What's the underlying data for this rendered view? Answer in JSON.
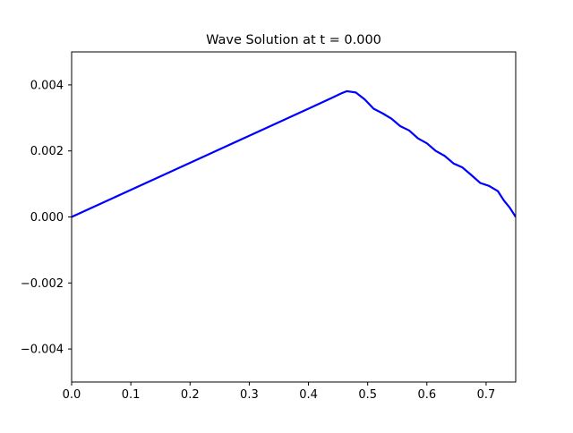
{
  "chart_data": {
    "type": "line",
    "title": "Wave Solution at t = 0.000",
    "xlabel": "",
    "ylabel": "",
    "xlim": [
      0.0,
      0.75
    ],
    "ylim": [
      -0.005,
      0.005
    ],
    "xticks": [
      0.0,
      0.1,
      0.2,
      0.3,
      0.4,
      0.5,
      0.6,
      0.7
    ],
    "xtick_labels": [
      "0.0",
      "0.1",
      "0.2",
      "0.3",
      "0.4",
      "0.5",
      "0.6",
      "0.7"
    ],
    "yticks": [
      -0.004,
      -0.002,
      0.0,
      0.002,
      0.004
    ],
    "ytick_labels": [
      "−0.004",
      "−0.002",
      "0.000",
      "0.002",
      "0.004"
    ],
    "grid": false,
    "legend": "none",
    "series": [
      {
        "color": "#0000ff",
        "x": [
          0.0,
          0.05,
          0.1,
          0.15,
          0.2,
          0.25,
          0.3,
          0.35,
          0.4,
          0.44,
          0.455,
          0.465,
          0.48,
          0.495,
          0.51,
          0.525,
          0.54,
          0.555,
          0.57,
          0.585,
          0.6,
          0.615,
          0.63,
          0.645,
          0.66,
          0.675,
          0.69,
          0.705,
          0.72,
          0.73,
          0.74,
          0.75
        ],
        "y": [
          0.0,
          0.00041,
          0.00082,
          0.00123,
          0.00164,
          0.00205,
          0.00246,
          0.00287,
          0.00328,
          0.00361,
          0.00374,
          0.00381,
          0.00377,
          0.00356,
          0.00328,
          0.00314,
          0.00298,
          0.00275,
          0.00262,
          0.00238,
          0.00223,
          0.002,
          0.00185,
          0.00162,
          0.0015,
          0.00127,
          0.00103,
          0.00094,
          0.00078,
          0.0005,
          0.00028,
          0.0
        ]
      }
    ]
  }
}
